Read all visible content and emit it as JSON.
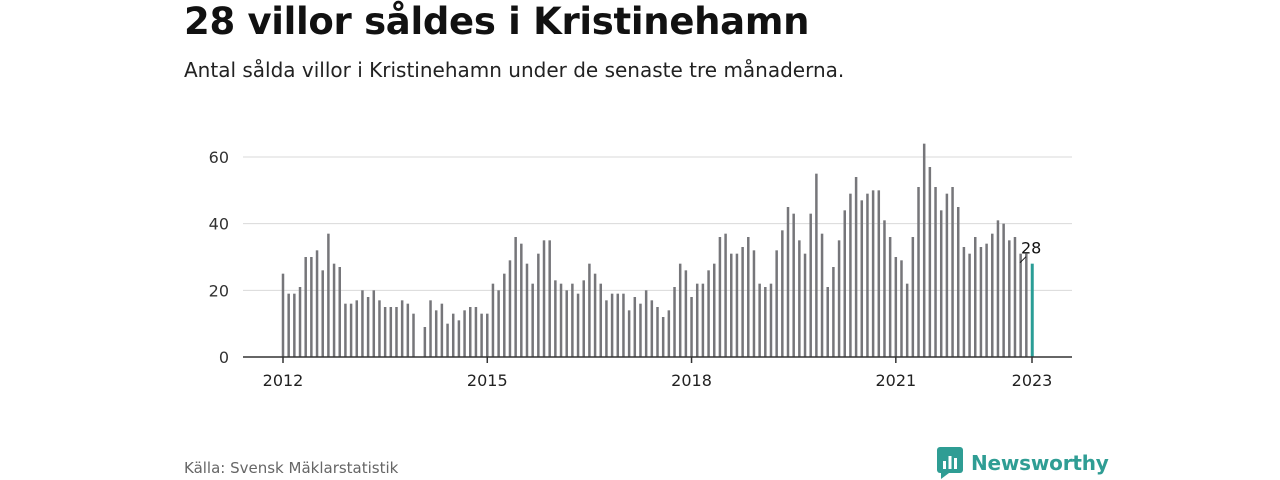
{
  "header": {
    "title": "28 villor såldes i Kristinehamn",
    "subtitle": "Antal sålda villor i Kristinehamn under de senaste tre månaderna."
  },
  "footer": {
    "source": "Källa: Svensk Mäklarstatistik",
    "brand": "Newsworthy"
  },
  "colors": {
    "bar": "#76767a",
    "highlight": "#2a9d96",
    "grid": "#d9d9d9",
    "axis": "#333333",
    "brand": "#2f9d94"
  },
  "icons": {
    "brand_logo": "bar-chart-speech-bubble-icon"
  },
  "chart_data": {
    "type": "bar",
    "title": "",
    "xlabel": "",
    "ylabel": "",
    "ylim": [
      0,
      70
    ],
    "y_ticks": [
      0,
      20,
      40,
      60
    ],
    "x_ticks": [
      "2012",
      "2015",
      "2018",
      "2021",
      "2023"
    ],
    "grid": "horizontal",
    "x_start": "2012-01",
    "x_end": "2023-01",
    "highlight_label": "28",
    "values": [
      25,
      19,
      19,
      21,
      30,
      30,
      32,
      26,
      37,
      28,
      27,
      16,
      16,
      17,
      20,
      18,
      20,
      17,
      15,
      15,
      15,
      17,
      16,
      13,
      null,
      9,
      17,
      14,
      16,
      10,
      13,
      11,
      14,
      15,
      15,
      13,
      13,
      22,
      20,
      25,
      29,
      36,
      34,
      28,
      22,
      31,
      35,
      35,
      23,
      22,
      20,
      22,
      19,
      23,
      28,
      25,
      22,
      17,
      19,
      19,
      19,
      14,
      18,
      16,
      20,
      17,
      15,
      12,
      14,
      21,
      28,
      26,
      18,
      22,
      22,
      26,
      28,
      36,
      37,
      31,
      31,
      33,
      36,
      32,
      22,
      21,
      22,
      32,
      38,
      45,
      43,
      35,
      31,
      43,
      55,
      37,
      21,
      27,
      35,
      44,
      49,
      54,
      47,
      49,
      50,
      50,
      41,
      36,
      30,
      29,
      22,
      36,
      51,
      64,
      57,
      51,
      44,
      49,
      51,
      45,
      33,
      31,
      36,
      33,
      34,
      37,
      41,
      40,
      35,
      36,
      31,
      31,
      28
    ]
  }
}
